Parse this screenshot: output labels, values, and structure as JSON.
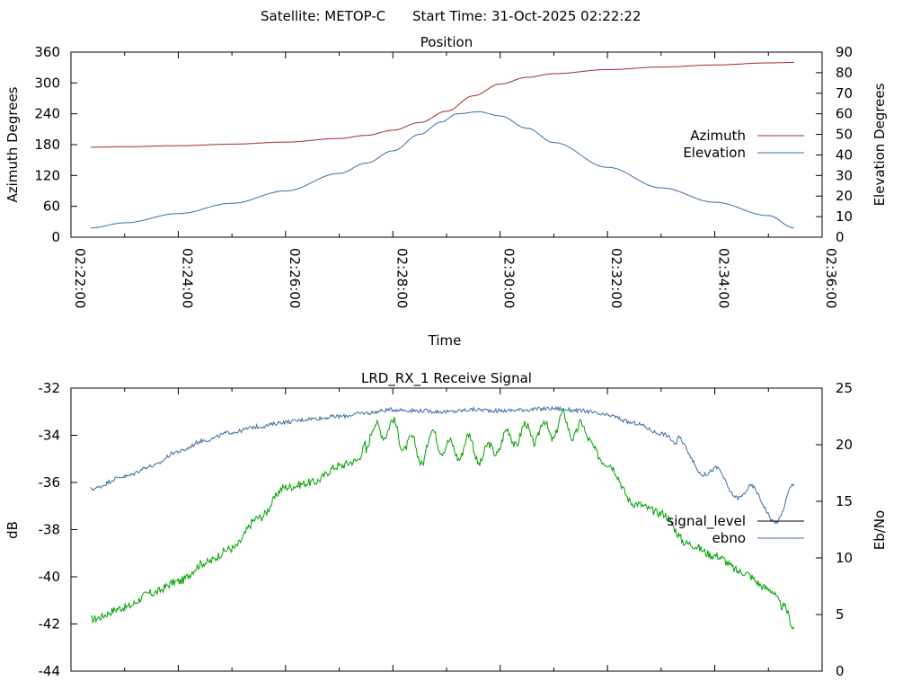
{
  "header": {
    "satellite": "Satellite: METOP-C",
    "start_time": "Start Time: 31-Oct-2025 02:22:22"
  },
  "colors": {
    "azimuth": "#a52a2a",
    "elevation": "#3a6ea5",
    "signal_level": "#00a000",
    "signal_legend": "#000000",
    "ebno": "#3a6ea5"
  },
  "chart_data": [
    {
      "type": "line",
      "title": "Position",
      "xlabel": "Time",
      "ylabel": "Azimuth Degrees",
      "y2label": "Elevation Degrees",
      "x_ticks": [
        "02:22:00",
        "02:24:00",
        "02:26:00",
        "02:28:00",
        "02:30:00",
        "02:32:00",
        "02:34:00",
        "02:36:00"
      ],
      "xlim_minutes": [
        0,
        14
      ],
      "ylim": [
        0,
        360
      ],
      "y_ticks": [
        "0",
        "60",
        "120",
        "180",
        "240",
        "300",
        "360"
      ],
      "y2lim": [
        0,
        90
      ],
      "y2_ticks": [
        "0",
        "10",
        "20",
        "30",
        "40",
        "50",
        "60",
        "70",
        "80",
        "90"
      ],
      "legend_position": "right",
      "series": [
        {
          "name": "Azimuth",
          "axis": "y",
          "x_minutes": [
            0.37,
            1.0,
            2.0,
            3.0,
            4.0,
            5.0,
            5.5,
            6.0,
            6.5,
            7.0,
            7.5,
            8.0,
            8.5,
            9.0,
            10.0,
            11.0,
            12.0,
            13.0,
            13.48
          ],
          "values": [
            175,
            176,
            178,
            181,
            185,
            192,
            198,
            208,
            223,
            245,
            275,
            298,
            311,
            318,
            326,
            331,
            335,
            339,
            340
          ]
        },
        {
          "name": "Elevation",
          "axis": "y2",
          "x_minutes": [
            0.37,
            1.0,
            2.0,
            3.0,
            4.0,
            5.0,
            5.5,
            6.0,
            6.5,
            6.9,
            7.2,
            7.6,
            8.0,
            8.5,
            9.0,
            10.0,
            11.0,
            12.0,
            13.0,
            13.48
          ],
          "values": [
            4.5,
            7,
            11.5,
            16.5,
            22.5,
            31,
            36,
            42,
            50,
            56,
            60,
            61,
            59,
            53,
            46,
            34,
            24,
            17,
            10.5,
            4.5
          ]
        }
      ]
    },
    {
      "type": "line",
      "title": "LRD_RX_1 Receive Signal",
      "xlabel": "",
      "ylabel": "dB",
      "y2label": "Eb/No",
      "xlim_minutes": [
        0,
        14
      ],
      "ylim": [
        -44,
        -32
      ],
      "y_ticks": [
        "-44",
        "-42",
        "-40",
        "-38",
        "-36",
        "-34",
        "-32"
      ],
      "y2lim": [
        0,
        25
      ],
      "y2_ticks": [
        "0",
        "5",
        "10",
        "15",
        "20",
        "25"
      ],
      "legend_position": "right",
      "series": [
        {
          "name": "signal_level",
          "axis": "y",
          "x_minutes": [
            0.37,
            1.0,
            1.5,
            2.0,
            2.5,
            3.0,
            3.5,
            4.0,
            4.5,
            5.0,
            5.3,
            5.6,
            5.9,
            6.2,
            6.5,
            6.8,
            7.1,
            7.4,
            7.7,
            8.0,
            8.3,
            8.6,
            8.9,
            9.2,
            9.5,
            10.0,
            10.5,
            11.0,
            11.5,
            12.0,
            12.5,
            13.0,
            13.3,
            13.48
          ],
          "values": [
            -41.8,
            -41.3,
            -40.7,
            -40.2,
            -39.4,
            -38.8,
            -37.5,
            -36.2,
            -36.0,
            -35.3,
            -35.1,
            -34.0,
            -33.6,
            -34.2,
            -34.8,
            -34.1,
            -34.7,
            -34.4,
            -34.9,
            -34.3,
            -34.0,
            -33.9,
            -33.8,
            -33.5,
            -33.9,
            -35.2,
            -36.9,
            -37.3,
            -38.6,
            -39.1,
            -39.8,
            -40.5,
            -41.3,
            -42.2
          ]
        },
        {
          "name": "ebno",
          "axis": "y2",
          "x_minutes": [
            0.37,
            1.0,
            1.5,
            2.0,
            2.5,
            3.0,
            3.5,
            4.0,
            4.5,
            5.0,
            5.5,
            6.0,
            6.5,
            7.0,
            7.5,
            8.0,
            8.5,
            9.0,
            9.5,
            10.0,
            10.5,
            11.0,
            11.5,
            12.0,
            12.3,
            12.6,
            12.9,
            13.2,
            13.48
          ],
          "values": [
            16.1,
            17.2,
            18.1,
            19.4,
            20.4,
            21.1,
            21.6,
            22.0,
            22.3,
            22.5,
            22.8,
            23.1,
            23.0,
            22.9,
            23.1,
            23.0,
            23.1,
            23.2,
            23.0,
            22.6,
            21.9,
            21.0,
            19.3,
            17.1,
            16.4,
            15.8,
            14.6,
            13.9,
            15.6
          ]
        }
      ]
    }
  ]
}
